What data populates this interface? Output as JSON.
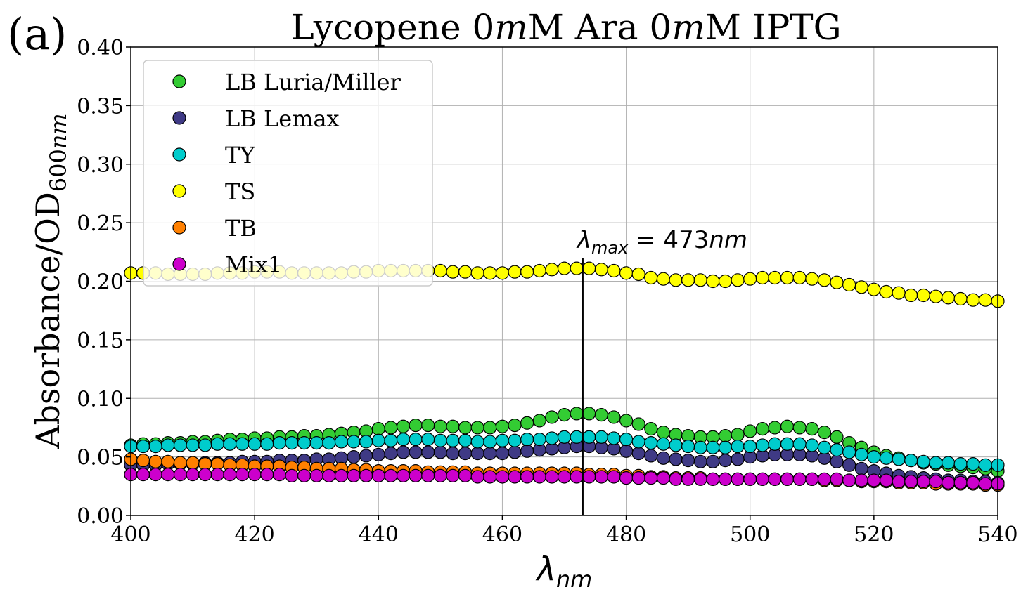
{
  "panel_label": "(a)",
  "chart_data": {
    "type": "scatter",
    "title": "Lycopene 0mM Ara 0mM IPTG",
    "title_parts": [
      "Lycopene 0",
      "m",
      "M Ara 0",
      "m",
      "M IPTG"
    ],
    "xlabel": "λnm",
    "xlabel_parts": {
      "main": "λ",
      "sub": "nm"
    },
    "ylabel": "Absorbance/OD600nm",
    "ylabel_parts": {
      "main": "Absorbance/OD",
      "sub": "600",
      "sub_italic": "nm"
    },
    "xlim": [
      400,
      540
    ],
    "ylim": [
      0,
      0.4
    ],
    "xticks": [
      "400",
      "420",
      "440",
      "460",
      "480",
      "500",
      "520",
      "540"
    ],
    "yticks": [
      "0.00",
      "0.05",
      "0.10",
      "0.15",
      "0.20",
      "0.25",
      "0.30",
      "0.35",
      "0.40"
    ],
    "grid": true,
    "legend_position": "top-left",
    "annotation": {
      "text": "λmax = 473nm",
      "main": "λ",
      "sub": "max",
      "rest": " = 473",
      "unit": "nm",
      "x": 473,
      "y_top": 0.22
    },
    "x": [
      400,
      402,
      404,
      406,
      408,
      410,
      412,
      414,
      416,
      418,
      420,
      422,
      424,
      426,
      428,
      430,
      432,
      434,
      436,
      438,
      440,
      442,
      444,
      446,
      448,
      450,
      452,
      454,
      456,
      458,
      460,
      462,
      464,
      466,
      468,
      470,
      472,
      474,
      476,
      478,
      480,
      482,
      484,
      486,
      488,
      490,
      492,
      494,
      496,
      498,
      500,
      502,
      504,
      506,
      508,
      510,
      512,
      514,
      516,
      518,
      520,
      522,
      524,
      526,
      528,
      530,
      532,
      534,
      536,
      538,
      540
    ],
    "series": [
      {
        "name": "LB Luria/Miller",
        "color": "#33cc33",
        "values": [
          0.06,
          0.061,
          0.061,
          0.062,
          0.062,
          0.063,
          0.063,
          0.064,
          0.065,
          0.065,
          0.066,
          0.066,
          0.067,
          0.067,
          0.068,
          0.068,
          0.069,
          0.07,
          0.071,
          0.072,
          0.074,
          0.075,
          0.076,
          0.077,
          0.077,
          0.076,
          0.076,
          0.075,
          0.075,
          0.075,
          0.076,
          0.077,
          0.079,
          0.081,
          0.084,
          0.086,
          0.087,
          0.087,
          0.086,
          0.084,
          0.081,
          0.078,
          0.074,
          0.071,
          0.069,
          0.068,
          0.067,
          0.067,
          0.068,
          0.069,
          0.072,
          0.074,
          0.075,
          0.076,
          0.075,
          0.074,
          0.071,
          0.067,
          0.062,
          0.058,
          0.054,
          0.051,
          0.049,
          0.047,
          0.045,
          0.044,
          0.043,
          0.042,
          0.041,
          0.04,
          0.038
        ]
      },
      {
        "name": "LB Lemax",
        "color": "#3f3a85",
        "values": [
          0.043,
          0.043,
          0.043,
          0.044,
          0.044,
          0.044,
          0.045,
          0.045,
          0.045,
          0.046,
          0.046,
          0.046,
          0.047,
          0.047,
          0.047,
          0.048,
          0.048,
          0.049,
          0.05,
          0.051,
          0.052,
          0.053,
          0.054,
          0.054,
          0.054,
          0.054,
          0.053,
          0.053,
          0.053,
          0.053,
          0.053,
          0.054,
          0.055,
          0.056,
          0.057,
          0.058,
          0.059,
          0.059,
          0.058,
          0.057,
          0.055,
          0.053,
          0.051,
          0.049,
          0.048,
          0.047,
          0.046,
          0.046,
          0.047,
          0.048,
          0.05,
          0.051,
          0.052,
          0.052,
          0.052,
          0.051,
          0.049,
          0.046,
          0.043,
          0.04,
          0.038,
          0.036,
          0.034,
          0.033,
          0.032,
          0.031,
          0.03,
          0.03,
          0.029,
          0.029,
          0.028
        ]
      },
      {
        "name": "TY",
        "color": "#00cccc",
        "values": [
          0.059,
          0.059,
          0.059,
          0.06,
          0.06,
          0.06,
          0.06,
          0.061,
          0.061,
          0.061,
          0.061,
          0.061,
          0.062,
          0.062,
          0.062,
          0.062,
          0.062,
          0.063,
          0.063,
          0.063,
          0.064,
          0.064,
          0.065,
          0.065,
          0.065,
          0.064,
          0.064,
          0.064,
          0.063,
          0.063,
          0.064,
          0.064,
          0.065,
          0.065,
          0.066,
          0.067,
          0.067,
          0.067,
          0.067,
          0.066,
          0.065,
          0.063,
          0.062,
          0.061,
          0.06,
          0.059,
          0.058,
          0.058,
          0.058,
          0.059,
          0.059,
          0.06,
          0.061,
          0.061,
          0.061,
          0.06,
          0.058,
          0.056,
          0.054,
          0.052,
          0.05,
          0.049,
          0.048,
          0.047,
          0.046,
          0.045,
          0.045,
          0.044,
          0.044,
          0.043,
          0.043
        ]
      },
      {
        "name": "TS",
        "color": "#ffff00",
        "values": [
          0.207,
          0.207,
          0.207,
          0.206,
          0.206,
          0.206,
          0.206,
          0.207,
          0.207,
          0.207,
          0.208,
          0.208,
          0.208,
          0.207,
          0.207,
          0.207,
          0.207,
          0.207,
          0.208,
          0.208,
          0.209,
          0.209,
          0.209,
          0.209,
          0.209,
          0.209,
          0.208,
          0.208,
          0.207,
          0.207,
          0.207,
          0.208,
          0.208,
          0.209,
          0.21,
          0.211,
          0.211,
          0.211,
          0.21,
          0.209,
          0.207,
          0.206,
          0.203,
          0.202,
          0.201,
          0.201,
          0.201,
          0.2,
          0.2,
          0.201,
          0.202,
          0.203,
          0.203,
          0.203,
          0.203,
          0.202,
          0.201,
          0.199,
          0.197,
          0.195,
          0.193,
          0.191,
          0.19,
          0.188,
          0.188,
          0.187,
          0.186,
          0.185,
          0.184,
          0.184,
          0.183
        ]
      },
      {
        "name": "TB",
        "color": "#ff8000",
        "values": [
          0.048,
          0.047,
          0.046,
          0.046,
          0.045,
          0.045,
          0.044,
          0.044,
          0.043,
          0.043,
          0.042,
          0.042,
          0.042,
          0.041,
          0.041,
          0.04,
          0.04,
          0.04,
          0.039,
          0.039,
          0.038,
          0.038,
          0.038,
          0.038,
          0.037,
          0.037,
          0.037,
          0.037,
          0.036,
          0.036,
          0.036,
          0.036,
          0.036,
          0.036,
          0.036,
          0.036,
          0.036,
          0.035,
          0.035,
          0.035,
          0.034,
          0.034,
          0.033,
          0.033,
          0.032,
          0.032,
          0.032,
          0.031,
          0.031,
          0.031,
          0.031,
          0.031,
          0.031,
          0.031,
          0.031,
          0.031,
          0.03,
          0.03,
          0.03,
          0.029,
          0.029,
          0.029,
          0.028,
          0.028,
          0.028,
          0.027,
          0.027,
          0.027,
          0.027,
          0.026,
          0.026
        ]
      },
      {
        "name": "Mix1",
        "color": "#cc00cc",
        "values": [
          0.035,
          0.035,
          0.035,
          0.035,
          0.035,
          0.035,
          0.035,
          0.035,
          0.035,
          0.035,
          0.035,
          0.035,
          0.035,
          0.034,
          0.034,
          0.034,
          0.034,
          0.034,
          0.034,
          0.034,
          0.034,
          0.034,
          0.034,
          0.034,
          0.034,
          0.034,
          0.034,
          0.034,
          0.033,
          0.033,
          0.033,
          0.033,
          0.033,
          0.033,
          0.033,
          0.033,
          0.033,
          0.033,
          0.033,
          0.033,
          0.032,
          0.032,
          0.032,
          0.032,
          0.031,
          0.031,
          0.031,
          0.031,
          0.031,
          0.031,
          0.031,
          0.031,
          0.031,
          0.031,
          0.031,
          0.031,
          0.031,
          0.031,
          0.03,
          0.03,
          0.03,
          0.03,
          0.029,
          0.029,
          0.029,
          0.029,
          0.028,
          0.028,
          0.028,
          0.027,
          0.027
        ]
      }
    ]
  }
}
